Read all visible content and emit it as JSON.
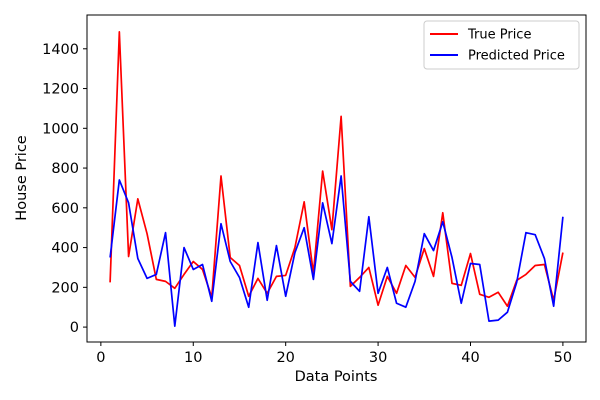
{
  "chart_data": {
    "type": "line",
    "title": "",
    "xlabel": "Data Points",
    "ylabel": "House Price",
    "xlim": [
      -1.5,
      52.5
    ],
    "ylim": [
      -75,
      1570
    ],
    "xticks": [
      0,
      10,
      20,
      30,
      40,
      50
    ],
    "yticks": [
      0,
      200,
      400,
      600,
      800,
      1000,
      1200,
      1400
    ],
    "grid": false,
    "legend_position": "top-right",
    "x": [
      1,
      2,
      3,
      4,
      5,
      6,
      7,
      8,
      9,
      10,
      11,
      12,
      13,
      14,
      15,
      16,
      17,
      18,
      19,
      20,
      21,
      22,
      23,
      24,
      25,
      26,
      27,
      28,
      29,
      30,
      31,
      32,
      33,
      34,
      35,
      36,
      37,
      38,
      39,
      40,
      41,
      42,
      43,
      44,
      45,
      46,
      47,
      48,
      49,
      50
    ],
    "series": [
      {
        "name": "True Price",
        "color": "#ff0000",
        "values": [
          225,
          1485,
          355,
          645,
          470,
          240,
          230,
          195,
          265,
          330,
          290,
          150,
          760,
          350,
          310,
          155,
          245,
          170,
          255,
          260,
          400,
          630,
          270,
          785,
          490,
          1060,
          205,
          250,
          300,
          110,
          255,
          170,
          310,
          250,
          395,
          255,
          575,
          220,
          210,
          370,
          165,
          150,
          175,
          105,
          235,
          265,
          310,
          315,
          135,
          375
        ]
      },
      {
        "name": "Predicted Price",
        "color": "#0000ff",
        "values": [
          350,
          740,
          625,
          345,
          245,
          265,
          475,
          5,
          400,
          290,
          315,
          130,
          520,
          330,
          250,
          100,
          425,
          135,
          410,
          155,
          375,
          500,
          240,
          625,
          420,
          760,
          230,
          180,
          555,
          170,
          300,
          120,
          100,
          230,
          470,
          385,
          530,
          350,
          120,
          320,
          315,
          30,
          35,
          75,
          225,
          475,
          465,
          345,
          105,
          555
        ]
      }
    ]
  }
}
